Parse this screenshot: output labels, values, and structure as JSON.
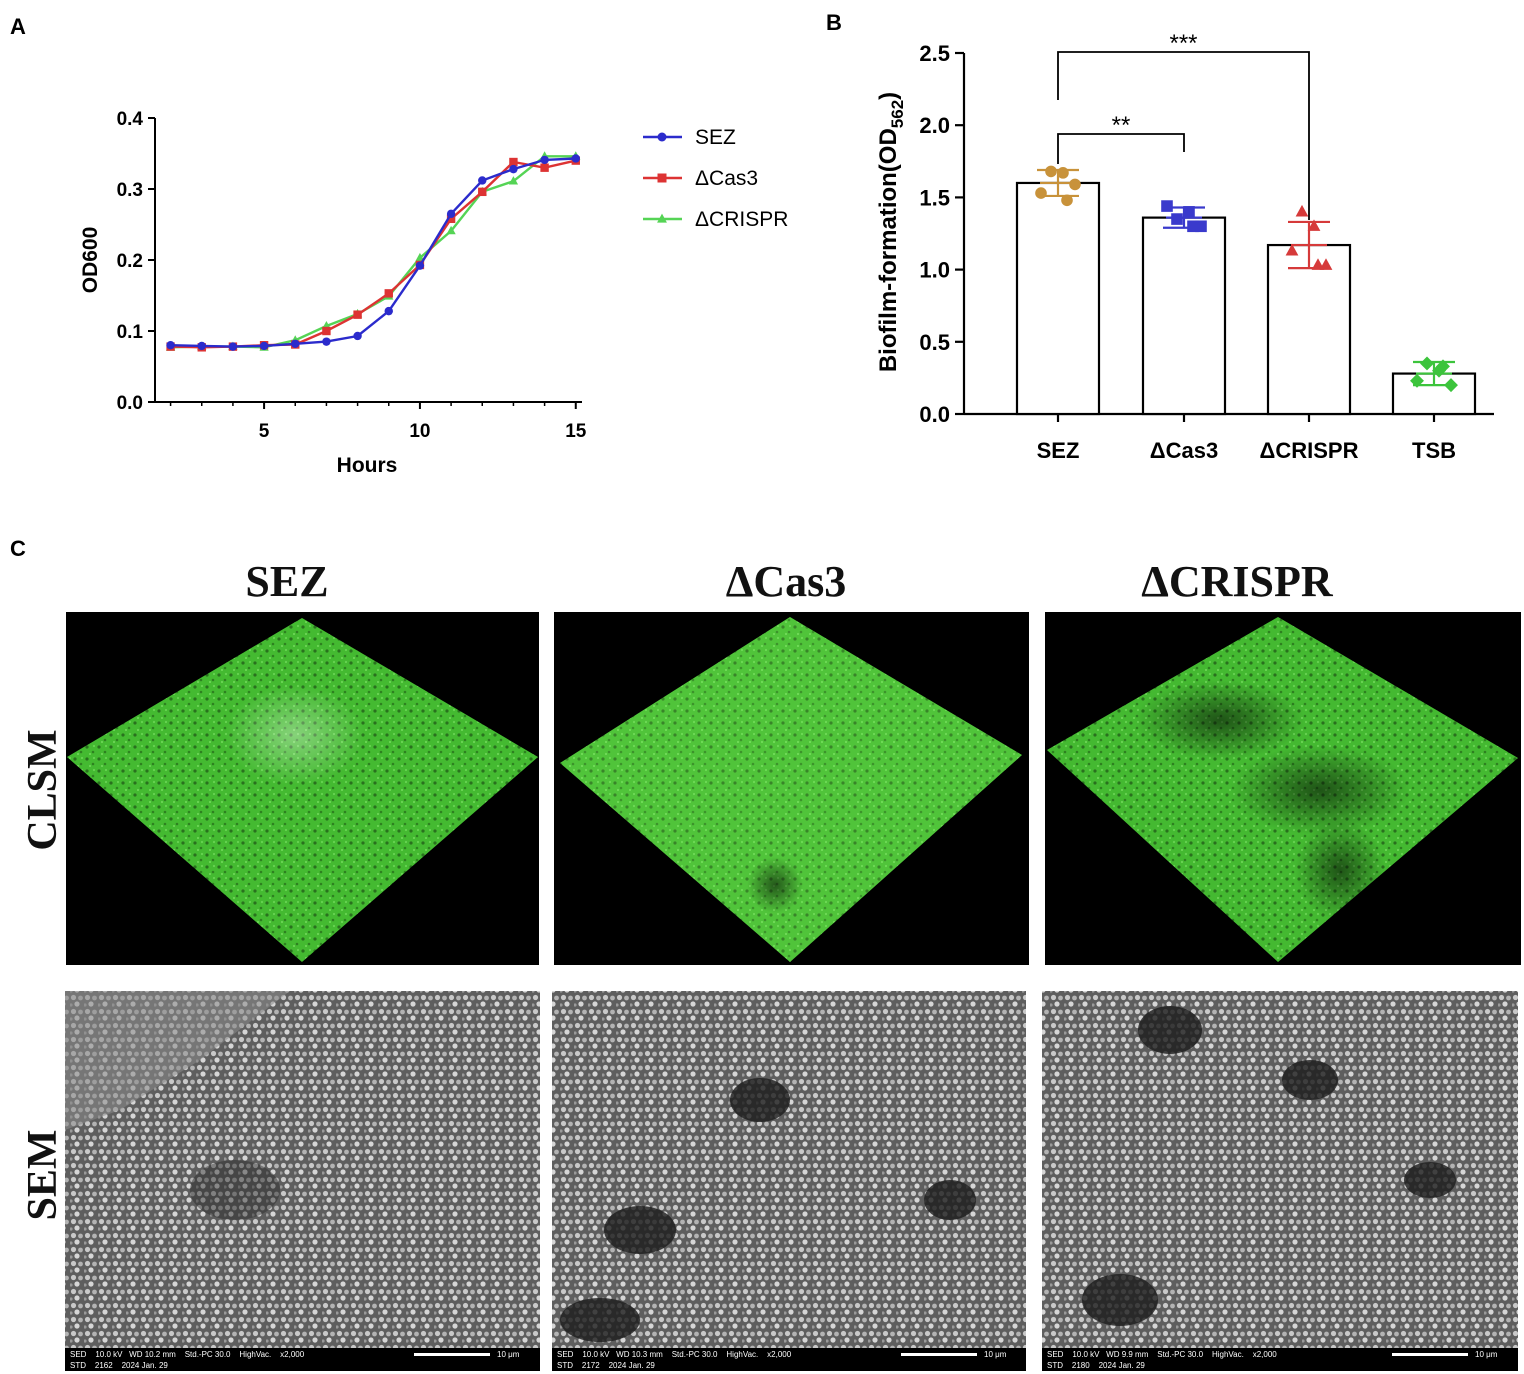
{
  "panel_labels": {
    "a": "A",
    "b": "B",
    "c": "C"
  },
  "colors": {
    "SEZ_line": "#2b2bcc",
    "Cas3_line": "#dd3333",
    "CRISPR_line": "#55d455",
    "SEZ_bar_points": "#c8923a",
    "Cas3_bar_points": "#3a3acc",
    "CRISPR_bar_points": "#d63a3a",
    "TSB_bar_points": "#3cc43c",
    "clsm_green": "#3fb52c"
  },
  "chart_data": [
    {
      "type": "line",
      "panel": "A",
      "xlabel": "Hours",
      "ylabel": "OD600",
      "xlim": [
        1.5,
        15.2
      ],
      "ylim": [
        0.0,
        0.4
      ],
      "xticks": [
        "5",
        "10",
        "15"
      ],
      "xtick_values": [
        5,
        10,
        15
      ],
      "yticks": [
        "0.0",
        "0.1",
        "0.2",
        "0.3",
        "0.4"
      ],
      "ytick_values": [
        0.0,
        0.1,
        0.2,
        0.3,
        0.4
      ],
      "legend_position": "right",
      "x": [
        2,
        3,
        4,
        5,
        6,
        7,
        8,
        9,
        10,
        11,
        12,
        13,
        14,
        15
      ],
      "series": [
        {
          "name": "SEZ",
          "marker": "circle",
          "values": [
            0.08,
            0.079,
            0.078,
            0.079,
            0.082,
            0.085,
            0.093,
            0.128,
            0.192,
            0.265,
            0.312,
            0.328,
            0.341,
            0.343
          ]
        },
        {
          "name": "ΔCas3",
          "marker": "square",
          "values": [
            0.078,
            0.077,
            0.078,
            0.08,
            0.081,
            0.1,
            0.123,
            0.153,
            0.193,
            0.258,
            0.296,
            0.338,
            0.33,
            0.34
          ]
        },
        {
          "name": "ΔCRISPR",
          "marker": "triangle",
          "values": [
            0.077,
            0.078,
            0.078,
            0.077,
            0.087,
            0.107,
            0.124,
            0.149,
            0.203,
            0.241,
            0.296,
            0.311,
            0.346,
            0.346
          ]
        }
      ]
    },
    {
      "type": "bar",
      "panel": "B",
      "ylabel": "Biofilm-formation(OD",
      "ylabel_sub": "562",
      "ylabel_close": ")",
      "ylim": [
        0.0,
        2.5
      ],
      "yticks": [
        "0.0",
        "0.5",
        "1.0",
        "1.5",
        "2.0",
        "2.5"
      ],
      "ytick_values": [
        0.0,
        0.5,
        1.0,
        1.5,
        2.0,
        2.5
      ],
      "categories": [
        "SEZ",
        "ΔCas3",
        "ΔCRISPR",
        "TSB"
      ],
      "values": [
        1.6,
        1.36,
        1.17,
        0.28
      ],
      "errors": [
        0.09,
        0.07,
        0.16,
        0.08
      ],
      "points": [
        [
          1.53,
          1.68,
          1.67,
          1.59,
          1.48
        ],
        [
          1.44,
          1.35,
          1.4,
          1.3,
          1.3
        ],
        [
          1.13,
          1.4,
          1.3,
          1.03,
          1.03
        ],
        [
          0.23,
          0.35,
          0.3,
          0.2,
          0.33
        ]
      ],
      "point_markers": [
        "circle",
        "square",
        "triangle",
        "diamond"
      ],
      "significance": [
        {
          "from": 0,
          "to": 1,
          "label": "**"
        },
        {
          "from": 0,
          "to": 2,
          "label": "***"
        }
      ]
    }
  ],
  "panel_c": {
    "columns": [
      "SEZ",
      "ΔCas3",
      "ΔCRISPR"
    ],
    "rows": [
      "CLSM",
      "SEM"
    ],
    "sem_info": [
      {
        "line1": "SED    10.0 kV   WD 10.2 mm    Std.-PC 30.0    HighVac.    x2,000",
        "line2": "STD    2162    2024 Jan. 29",
        "scale": "10 μm"
      },
      {
        "line1": "SED    10.0 kV   WD 10.3 mm    Std.-PC 30.0    HighVac.    x2,000",
        "line2": "STD    2172    2024 Jan. 29",
        "scale": "10 μm"
      },
      {
        "line1": "SED    10.0 kV   WD 9.9 mm    Std.-PC 30.0    HighVac.    x2,000",
        "line2": "STD    2180    2024 Jan. 29",
        "scale": "10 μm"
      }
    ]
  }
}
